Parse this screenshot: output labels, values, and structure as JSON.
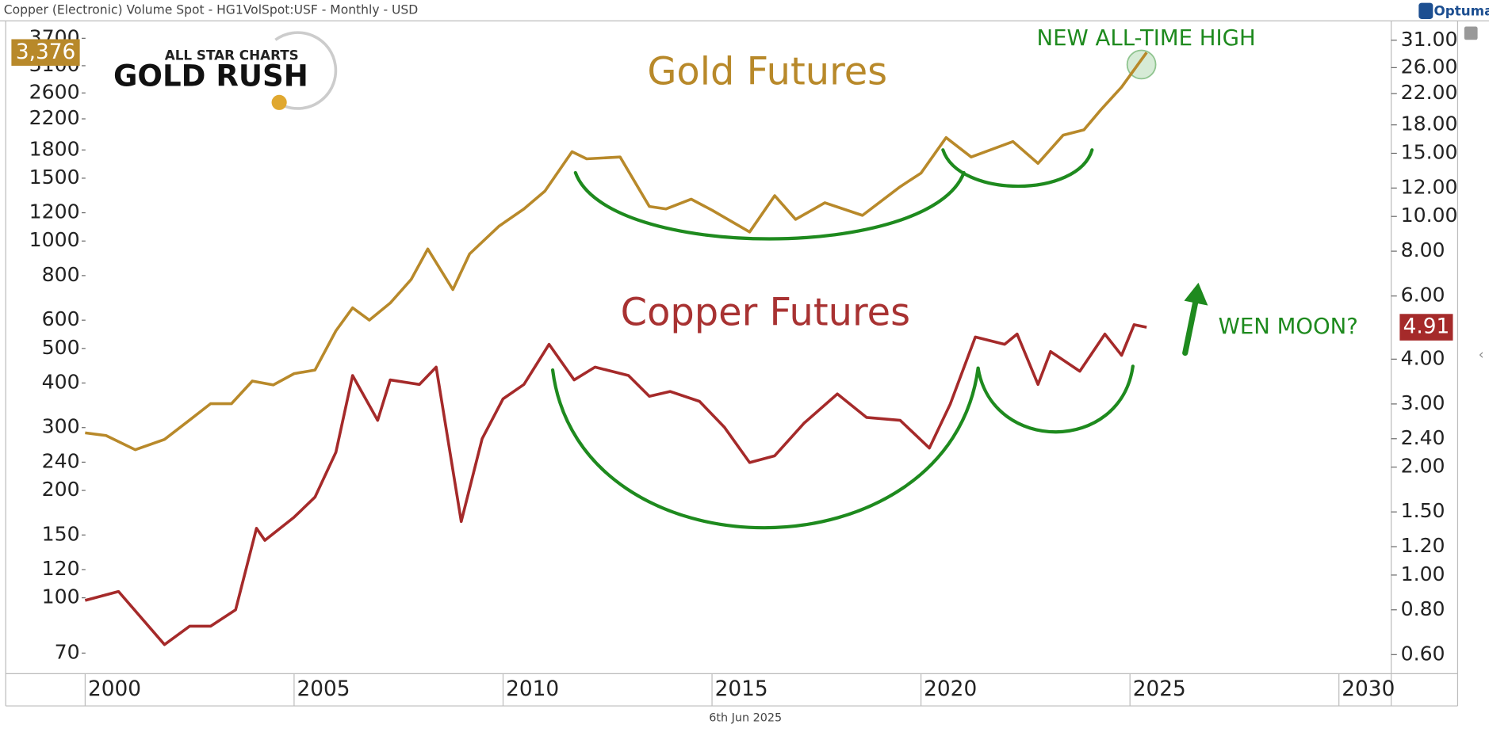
{
  "header": {
    "title": "Copper (Electronic) Volume Spot - HG1VolSpot:USF - Monthly - USD",
    "brand": "Optuma",
    "date": "6th Jun 2025"
  },
  "logo": {
    "line1": "ALL STAR CHARTS",
    "line2": "GOLD RUSH"
  },
  "chart_data": {
    "type": "line",
    "log_scale": true,
    "xlim": [
      1998.1,
      2031.25
    ],
    "xticks": [
      2000,
      2005,
      2010,
      2015,
      2020,
      2025,
      2030
    ],
    "ylim": [
      61.3,
      4140
    ],
    "yticks": [
      3700,
      3100,
      2600,
      2200,
      1800,
      1500,
      1200,
      1000,
      800,
      600,
      500,
      400,
      300,
      240,
      200,
      150,
      120,
      100,
      70
    ],
    "y2lim": [
      0.531,
      35.1
    ],
    "y2ticks": [
      {
        "value": 31,
        "label": "31.00"
      },
      {
        "value": 26,
        "label": "26.00"
      },
      {
        "value": 22,
        "label": "22.00"
      },
      {
        "value": 18,
        "label": "18.00"
      },
      {
        "value": 15,
        "label": "15.00"
      },
      {
        "value": 12,
        "label": "12.00"
      },
      {
        "value": 10,
        "label": "10.00"
      },
      {
        "value": 8,
        "label": "8.00"
      },
      {
        "value": 6,
        "label": "6.00"
      },
      {
        "value": 4,
        "label": "4.00"
      },
      {
        "value": 3,
        "label": "3.00"
      },
      {
        "value": 2.4,
        "label": "2.40"
      },
      {
        "value": 2,
        "label": "2.00"
      },
      {
        "value": 1.5,
        "label": "1.50"
      },
      {
        "value": 1.2,
        "label": "1.20"
      },
      {
        "value": 1,
        "label": "1.00"
      },
      {
        "value": 0.8,
        "label": "0.80"
      },
      {
        "value": 0.6,
        "label": "0.60"
      }
    ],
    "series": [
      {
        "name": "Gold Futures",
        "color": "#b8892a",
        "axis": "y",
        "last_label": "3,376",
        "x": [
          2000.0,
          2000.5,
          2001.2,
          2001.9,
          2002.5,
          2003.0,
          2003.5,
          2004.0,
          2004.5,
          2005.0,
          2005.5,
          2006.0,
          2006.4,
          2006.8,
          2007.3,
          2007.8,
          2008.2,
          2008.8,
          2009.2,
          2009.9,
          2010.5,
          2011.0,
          2011.65,
          2012.0,
          2012.8,
          2013.5,
          2013.9,
          2014.5,
          2015.0,
          2015.9,
          2016.5,
          2017.0,
          2017.7,
          2018.6,
          2019.5,
          2020.0,
          2020.6,
          2021.2,
          2022.2,
          2022.8,
          2023.4,
          2023.9,
          2024.3,
          2024.8,
          2025.4
        ],
        "values": [
          290,
          285,
          260,
          278,
          315,
          350,
          350,
          405,
          395,
          425,
          435,
          560,
          650,
          600,
          670,
          780,
          950,
          731,
          920,
          1100,
          1230,
          1380,
          1780,
          1700,
          1720,
          1250,
          1230,
          1310,
          1220,
          1060,
          1340,
          1150,
          1280,
          1180,
          1420,
          1550,
          1950,
          1720,
          1900,
          1650,
          1980,
          2050,
          2330,
          2700,
          3376
        ]
      },
      {
        "name": "Copper Futures",
        "color": "#a52a2a",
        "axis": "y2",
        "last_label": "4.91",
        "x": [
          2000.0,
          2000.8,
          2001.9,
          2002.5,
          2003.0,
          2003.6,
          2004.1,
          2004.3,
          2005.0,
          2005.5,
          2006.0,
          2006.4,
          2007.0,
          2007.3,
          2008.0,
          2008.4,
          2009.0,
          2009.5,
          2010.0,
          2010.5,
          2011.1,
          2011.7,
          2012.2,
          2013.0,
          2013.5,
          2014.0,
          2014.7,
          2015.3,
          2015.9,
          2016.5,
          2017.2,
          2018.0,
          2018.7,
          2019.5,
          2020.2,
          2020.7,
          2021.3,
          2022.0,
          2022.3,
          2022.8,
          2023.1,
          2023.8,
          2024.4,
          2024.8,
          2025.1,
          2025.4
        ],
        "values": [
          0.85,
          0.9,
          0.64,
          0.72,
          0.72,
          0.8,
          1.35,
          1.25,
          1.45,
          1.65,
          2.2,
          3.6,
          2.7,
          3.5,
          3.4,
          3.8,
          1.41,
          2.4,
          3.1,
          3.4,
          4.4,
          3.5,
          3.8,
          3.6,
          3.15,
          3.25,
          3.05,
          2.58,
          2.06,
          2.15,
          2.65,
          3.2,
          2.75,
          2.7,
          2.26,
          3.0,
          4.61,
          4.4,
          4.7,
          3.4,
          4.2,
          3.7,
          4.7,
          4.1,
          4.99,
          4.91
        ]
      }
    ],
    "annotations": [
      "NEW ALL-TIME HIGH",
      "WEN MOON?"
    ]
  }
}
